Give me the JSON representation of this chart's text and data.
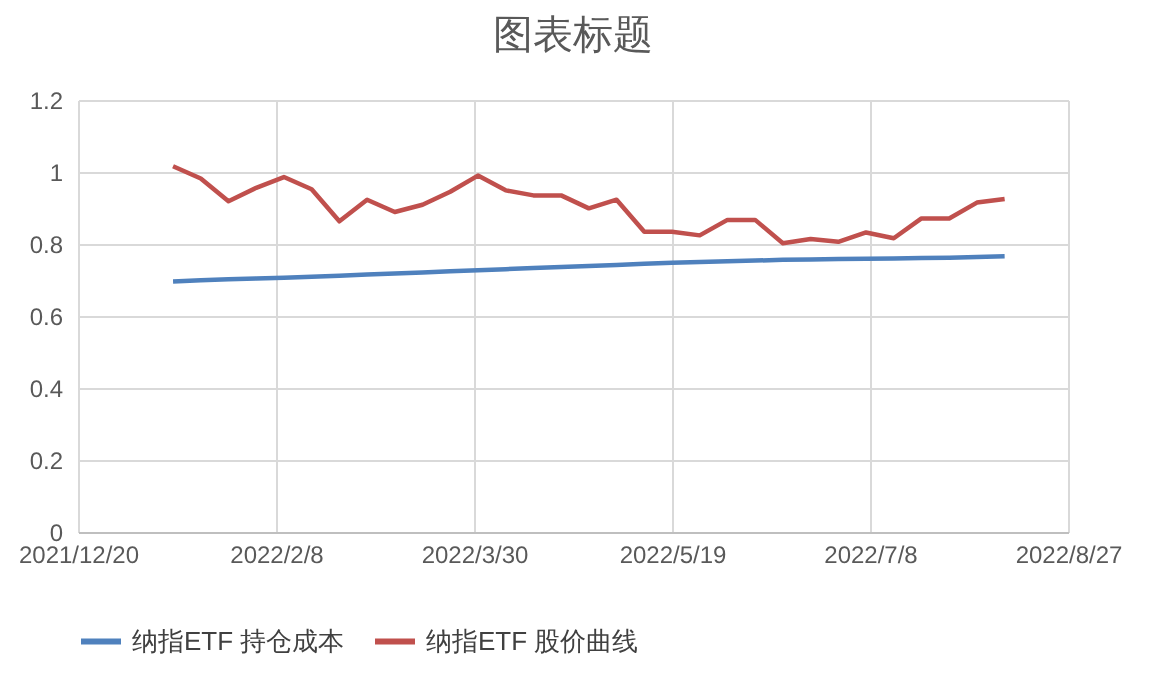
{
  "chart_data": {
    "type": "line",
    "title": "图表标题",
    "x": [
      "2022-01-13",
      "2022-01-20",
      "2022-01-27",
      "2022-02-03",
      "2022-02-10",
      "2022-02-17",
      "2022-02-24",
      "2022-03-03",
      "2022-03-10",
      "2022-03-17",
      "2022-03-24",
      "2022-03-31",
      "2022-04-07",
      "2022-04-14",
      "2022-04-21",
      "2022-04-28",
      "2022-05-05",
      "2022-05-12",
      "2022-05-19",
      "2022-05-26",
      "2022-06-02",
      "2022-06-09",
      "2022-06-16",
      "2022-06-23",
      "2022-06-30",
      "2022-07-07",
      "2022-07-14",
      "2022-07-21",
      "2022-07-28",
      "2022-08-04",
      "2022-08-11"
    ],
    "series": [
      {
        "name": "纳指ETF 持仓成本",
        "color": "#4f81bd",
        "values": [
          0.696,
          0.699,
          0.702,
          0.704,
          0.706,
          0.709,
          0.712,
          0.715,
          0.718,
          0.721,
          0.724,
          0.727,
          0.73,
          0.733,
          0.736,
          0.739,
          0.742,
          0.745,
          0.748,
          0.75,
          0.752,
          0.754,
          0.756,
          0.757,
          0.758,
          0.759,
          0.76,
          0.761,
          0.762,
          0.764,
          0.766
        ]
      },
      {
        "name": "纳指ETF 股价曲线",
        "color": "#c0504d",
        "values": [
          1.016,
          0.982,
          0.919,
          0.956,
          0.986,
          0.952,
          0.863,
          0.923,
          0.889,
          0.909,
          0.945,
          0.99,
          0.949,
          0.935,
          0.935,
          0.899,
          0.923,
          0.834,
          0.834,
          0.824,
          0.867,
          0.867,
          0.802,
          0.814,
          0.806,
          0.832,
          0.816,
          0.871,
          0.871,
          0.915,
          0.925
        ]
      }
    ],
    "xlim": [
      "2021-12-20",
      "2022-08-27"
    ],
    "xticks": [
      {
        "value": "2021-12-20",
        "label": "2021/12/20"
      },
      {
        "value": "2022-02-08",
        "label": "2022/2/8"
      },
      {
        "value": "2022-03-30",
        "label": "2022/3/30"
      },
      {
        "value": "2022-05-19",
        "label": "2022/5/19"
      },
      {
        "value": "2022-07-08",
        "label": "2022/7/8"
      },
      {
        "value": "2022-08-27",
        "label": "2022/8/27"
      }
    ],
    "ylim": [
      0,
      1.2
    ],
    "yticks": [
      0,
      0.2,
      0.4,
      0.6,
      0.8,
      1,
      1.2
    ],
    "grid": true,
    "legend": "bottom",
    "marker": "none",
    "line_style": "solid"
  }
}
